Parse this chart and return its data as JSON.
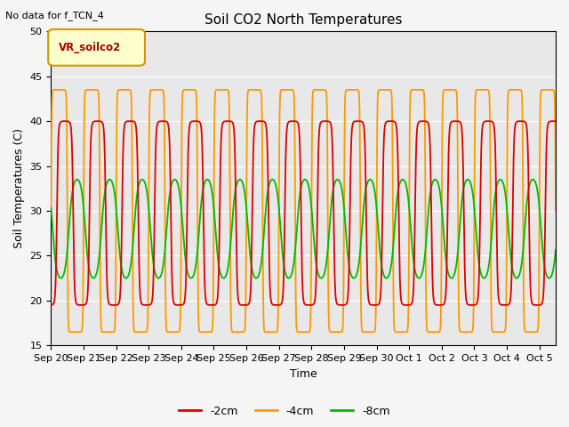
{
  "title": "Soil CO2 North Temperatures",
  "top_left_text": "No data for f_TCN_4",
  "ylabel": "Soil Temperatures (C)",
  "xlabel": "Time",
  "ylim": [
    15,
    50
  ],
  "yticks": [
    15,
    20,
    25,
    30,
    35,
    40,
    45,
    50
  ],
  "legend_box_label": "VR_soilco2",
  "legend_entries": [
    "-2cm",
    "-4cm",
    "-8cm"
  ],
  "line_colors": [
    "#dd0000",
    "#ff9900",
    "#00bb00"
  ],
  "background_color": "#e8e8e8",
  "fig_bg_color": "#f5f5f5",
  "n_days": 15.5,
  "x_labels": [
    "Sep 20",
    "Sep 21",
    "Sep 22",
    "Sep 23",
    "Sep 24",
    "Sep 25",
    "Sep 26",
    "Sep 27",
    "Sep 28",
    "Sep 29",
    "Sep 30",
    "Oct 1",
    "Oct 2",
    "Oct 3",
    "Oct 4",
    "Oct 5"
  ],
  "red_min": 19.5,
  "red_max": 40.0,
  "red_phase_shift": 0.18,
  "red_sharpness": 4.0,
  "orange_min": 16.5,
  "orange_max": 43.5,
  "orange_phase_shift": 0.0,
  "orange_sharpness": 8.0,
  "green_min": 22.5,
  "green_max": 33.5,
  "green_phase_shift": 0.55,
  "green_sharpness": 1.2
}
